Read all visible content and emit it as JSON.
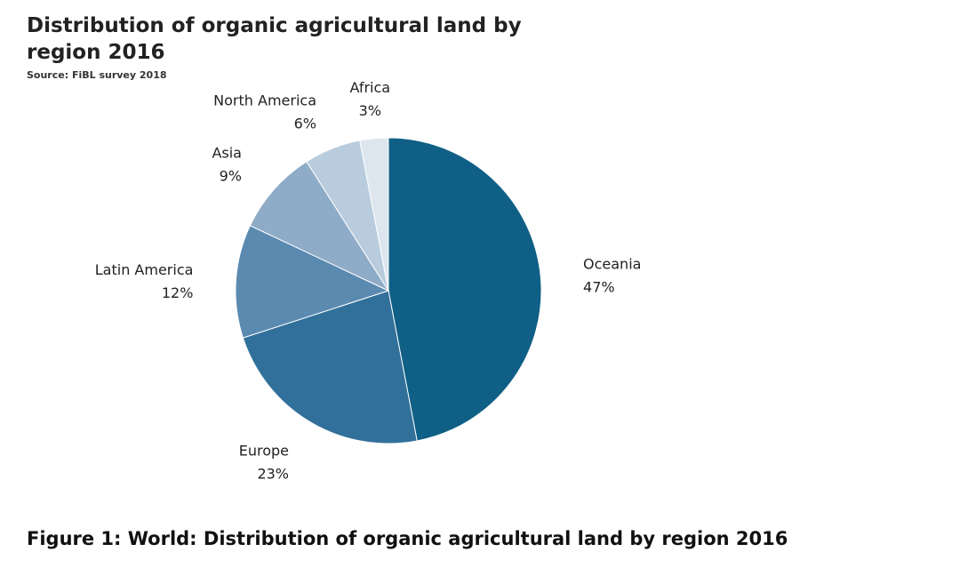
{
  "chart_data": {
    "type": "pie",
    "title": "Distribution of organic agricultural land by region 2016",
    "subtitle": "Source: FiBL survey 2018",
    "caption": "Figure 1: World: Distribution of organic agricultural land by region 2016",
    "categories": [
      "Oceania",
      "Europe",
      "Latin America",
      "Asia",
      "North America",
      "Africa"
    ],
    "values": [
      47,
      23,
      12,
      9,
      6,
      3
    ],
    "value_labels": [
      "47%",
      "23%",
      "12%",
      "9%",
      "6%",
      "3%"
    ],
    "colors": [
      "#0f5f86",
      "#31709a",
      "#5b8ab1",
      "#8eabc7",
      "#b8ccdd",
      "#dde6ef"
    ]
  }
}
